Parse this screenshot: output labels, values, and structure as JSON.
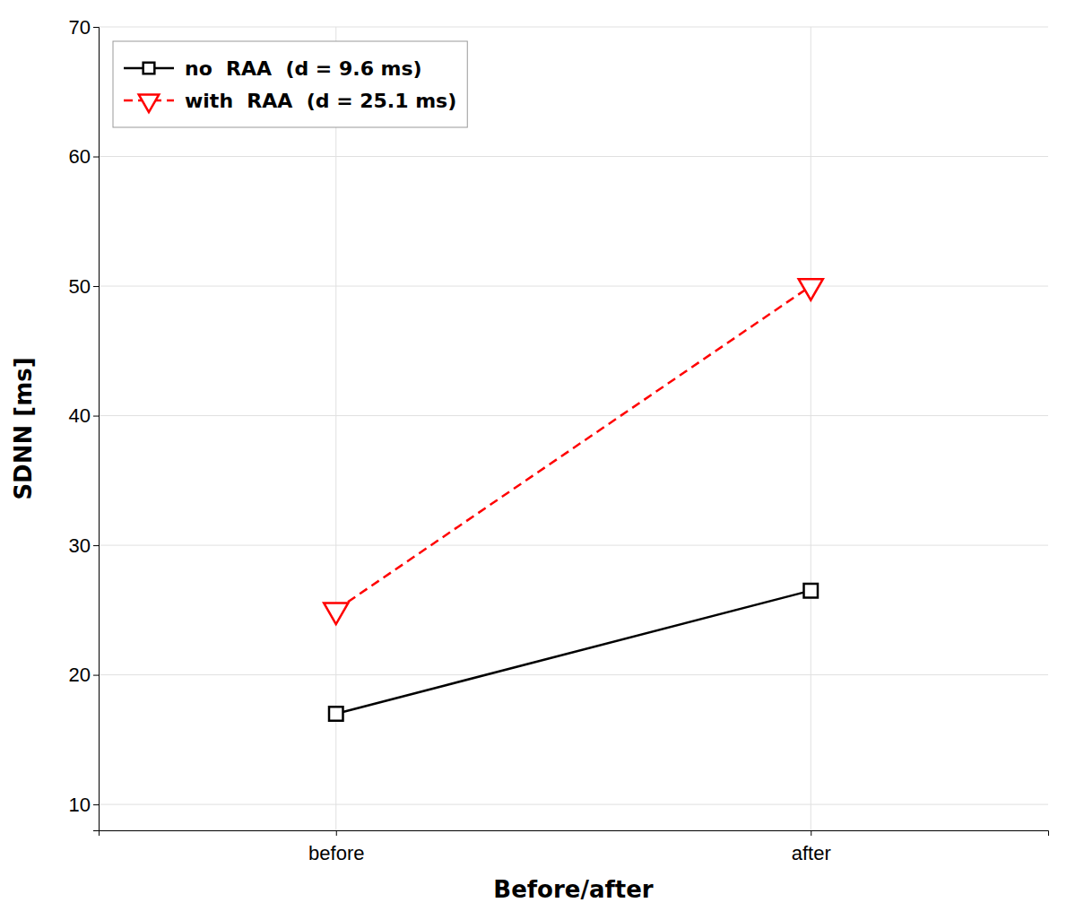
{
  "chart_data": {
    "type": "line",
    "categories": [
      "before",
      "after"
    ],
    "series": [
      {
        "name": "no  RAA  (d = 9.6 ms)",
        "color": "#000000",
        "values": [
          17.0,
          26.5
        ],
        "marker": "square",
        "line_style": "solid"
      },
      {
        "name": "with  RAA  (d = 25.1 ms)",
        "color": "#ff0000",
        "values": [
          25.0,
          50.0
        ],
        "marker": "triangle-down",
        "line_style": "dashed"
      }
    ],
    "x_label": "Before/after",
    "y_label": "SDNN [ms]",
    "ylim": [
      8,
      70
    ],
    "yticks": [
      10,
      20,
      30,
      40,
      50,
      60,
      70
    ],
    "grid": true,
    "legend": "upper left"
  }
}
